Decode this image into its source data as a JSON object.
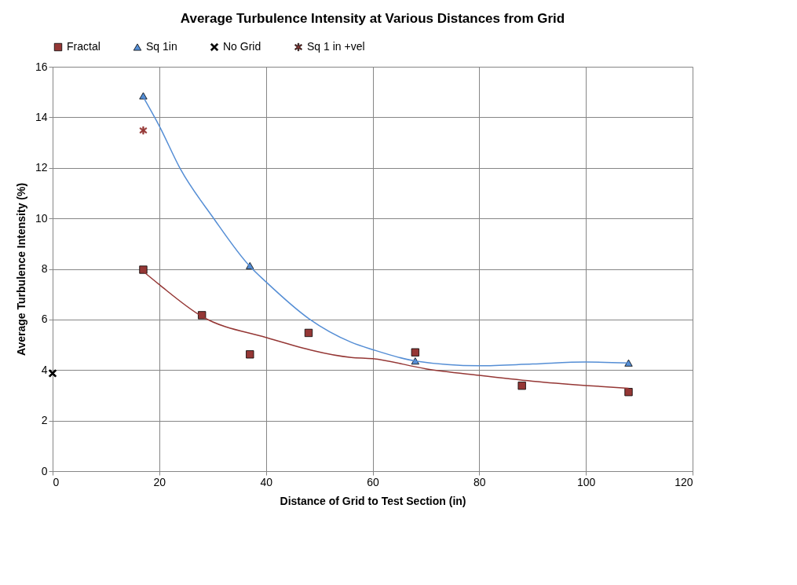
{
  "chart_data": {
    "type": "scatter",
    "title": "Average Turbulence Intensity at Various Distances from Grid",
    "xlabel": "Distance of Grid to Test Section (in)",
    "ylabel": "Average Turbulence Intensity (%)",
    "xlim": [
      0,
      120
    ],
    "xticks": [
      0,
      20,
      40,
      60,
      80,
      100,
      120
    ],
    "ylim": [
      0,
      16
    ],
    "yticks": [
      0,
      2,
      4,
      6,
      8,
      10,
      12,
      14,
      16
    ],
    "grid": true,
    "legend": "top",
    "series": [
      {
        "name": "Fractal",
        "marker": "square",
        "color": "#953735",
        "x": [
          17,
          28,
          37,
          48,
          68,
          88,
          108
        ],
        "values": [
          7.97,
          6.17,
          4.62,
          5.47,
          4.7,
          3.38,
          3.13
        ]
      },
      {
        "name": "Sq 1in",
        "marker": "triangle",
        "color": "#558ed5",
        "x": [
          17,
          37,
          68,
          108
        ],
        "values": [
          14.85,
          8.13,
          4.36,
          4.28
        ]
      },
      {
        "name": "No Grid",
        "marker": "cross",
        "color": "#000000",
        "x": [
          0
        ],
        "values": [
          3.87
        ]
      },
      {
        "name": "Sq 1 in +vel",
        "marker": "star",
        "color": "#953735",
        "x": [
          17
        ],
        "values": [
          13.48
        ]
      },
      {
        "type": "line",
        "color": "#558ed5",
        "x": [
          17,
          20,
          24,
          30,
          37,
          40,
          48,
          56,
          60,
          68,
          80,
          90,
          100,
          108
        ],
        "values": [
          14.8,
          13.66,
          11.94,
          10.06,
          8.1,
          7.49,
          6.04,
          5.1,
          4.81,
          4.36,
          4.17,
          4.24,
          4.32,
          4.28
        ]
      },
      {
        "type": "line",
        "color": "#953735",
        "x": [
          17,
          20,
          28,
          40,
          56,
          60,
          70,
          80,
          90,
          100,
          108
        ],
        "values": [
          7.9,
          7.38,
          6.12,
          5.29,
          4.5,
          4.45,
          4.05,
          3.79,
          3.56,
          3.39,
          3.28
        ]
      }
    ]
  }
}
